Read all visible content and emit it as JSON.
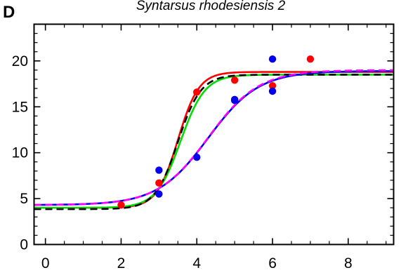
{
  "chart_data": {
    "type": "scatter",
    "panel_label": "D",
    "title": "Syntarsus rhodesiensis 2",
    "xlabel": "",
    "ylabel": "",
    "xlim": [
      -0.3,
      9.2
    ],
    "ylim": [
      0,
      24
    ],
    "x_ticks": [
      0,
      2,
      4,
      6,
      8
    ],
    "y_ticks": [
      0,
      5,
      10,
      15,
      20
    ],
    "x_tick_labels": [
      "0",
      "2",
      "4",
      "6",
      "8"
    ],
    "y_tick_labels": [
      "0",
      "5",
      "10",
      "15",
      "20"
    ],
    "grid": false,
    "legend": "none",
    "series": [
      {
        "kind": "points",
        "color": "#ff0000",
        "x": [
          2,
          3,
          4,
          5,
          6,
          7
        ],
        "y": [
          4.3,
          6.7,
          16.6,
          17.9,
          17.3,
          20.2
        ]
      },
      {
        "kind": "points",
        "color": "#0000ee",
        "x": [
          3,
          3,
          4,
          5,
          5,
          6,
          6
        ],
        "y": [
          8.1,
          5.5,
          9.5,
          15.8,
          15.7,
          20.2,
          16.7
        ]
      },
      {
        "kind": "curve",
        "color": "#ff0000",
        "style": "solid",
        "lower": 4.0,
        "upper": 18.8,
        "midpoint": 3.5,
        "slope": 3.6
      },
      {
        "kind": "curve",
        "color": "#00dd00",
        "style": "solid",
        "lower": 4.0,
        "upper": 18.5,
        "midpoint": 3.57,
        "slope": 3.1
      },
      {
        "kind": "curve",
        "color": "#000000",
        "style": "dashed",
        "lower": 3.85,
        "upper": 18.5,
        "midpoint": 3.5,
        "slope": 3.3
      },
      {
        "kind": "curve",
        "color": "#0000ee",
        "style": "solid",
        "lower": 4.3,
        "upper": 18.9,
        "midpoint": 4.3,
        "slope": 1.5
      },
      {
        "kind": "curve",
        "color": "#ff00ff",
        "style": "dashed",
        "lower": 4.3,
        "upper": 19.0,
        "midpoint": 4.3,
        "slope": 1.5
      }
    ]
  }
}
